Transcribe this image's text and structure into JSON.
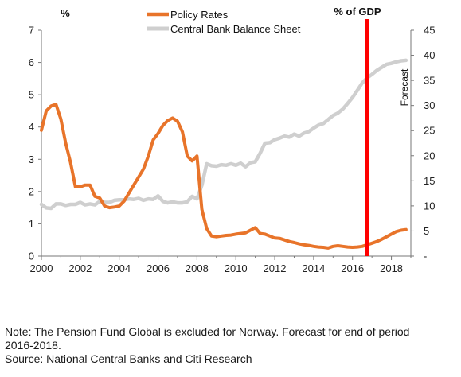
{
  "chart_data": {
    "type": "line",
    "left_unit": "%",
    "right_unit": "% of GDP",
    "forecast_label": "Forecast",
    "forecast_start_year": 2016.75,
    "x_ticks": [
      "2000",
      "2002",
      "2004",
      "2006",
      "2008",
      "2010",
      "2012",
      "2014",
      "2016",
      "2018"
    ],
    "y_left_ticks": [
      "0",
      "1",
      "2",
      "3",
      "4",
      "5",
      "6",
      "7"
    ],
    "y_right_ticks": [
      "-",
      "5",
      "10",
      "15",
      "20",
      "25",
      "30",
      "35",
      "40",
      "45"
    ],
    "xlim": [
      2000,
      2019
    ],
    "ylim_left": [
      0,
      7
    ],
    "ylim_right": [
      0,
      45
    ],
    "colors": {
      "policy": "#e8742a",
      "balance": "#cfcfcf",
      "forecast_line": "#ff0000"
    },
    "series": [
      {
        "name": "Policy Rates",
        "axis": "left",
        "x": [
          2000,
          2000.25,
          2000.5,
          2000.75,
          2001,
          2001.25,
          2001.5,
          2001.75,
          2002,
          2002.25,
          2002.5,
          2002.75,
          2003,
          2003.25,
          2003.5,
          2003.75,
          2004,
          2004.25,
          2004.5,
          2004.75,
          2005,
          2005.25,
          2005.5,
          2005.75,
          2006,
          2006.25,
          2006.5,
          2006.75,
          2007,
          2007.25,
          2007.5,
          2007.75,
          2008,
          2008.25,
          2008.5,
          2008.75,
          2009,
          2009.25,
          2009.5,
          2009.75,
          2010,
          2010.25,
          2010.5,
          2010.75,
          2011,
          2011.25,
          2011.5,
          2011.75,
          2012,
          2012.25,
          2012.5,
          2012.75,
          2013,
          2013.25,
          2013.5,
          2013.75,
          2014,
          2014.25,
          2014.5,
          2014.75,
          2015,
          2015.25,
          2015.5,
          2015.75,
          2016,
          2016.25,
          2016.5,
          2016.75,
          2017,
          2017.25,
          2017.5,
          2017.75,
          2018,
          2018.25,
          2018.5,
          2018.75
        ],
        "values": [
          3.9,
          4.5,
          4.65,
          4.7,
          4.25,
          3.5,
          2.9,
          2.15,
          2.15,
          2.2,
          2.2,
          1.85,
          1.8,
          1.55,
          1.5,
          1.52,
          1.55,
          1.7,
          1.95,
          2.2,
          2.45,
          2.7,
          3.1,
          3.6,
          3.8,
          4.05,
          4.2,
          4.28,
          4.18,
          3.85,
          3.1,
          2.95,
          3.1,
          1.45,
          0.85,
          0.62,
          0.6,
          0.62,
          0.64,
          0.65,
          0.68,
          0.7,
          0.72,
          0.8,
          0.88,
          0.7,
          0.68,
          0.62,
          0.56,
          0.55,
          0.5,
          0.45,
          0.42,
          0.38,
          0.35,
          0.33,
          0.3,
          0.28,
          0.27,
          0.25,
          0.3,
          0.32,
          0.3,
          0.28,
          0.27,
          0.28,
          0.3,
          0.35,
          0.4,
          0.45,
          0.52,
          0.6,
          0.68,
          0.76,
          0.8,
          0.82
        ]
      },
      {
        "name": "Central Bank Balance Sheet",
        "axis": "right",
        "x": [
          2000,
          2000.25,
          2000.5,
          2000.75,
          2001,
          2001.25,
          2001.5,
          2001.75,
          2002,
          2002.25,
          2002.5,
          2002.75,
          2003,
          2003.25,
          2003.5,
          2003.75,
          2004,
          2004.25,
          2004.5,
          2004.75,
          2005,
          2005.25,
          2005.5,
          2005.75,
          2006,
          2006.25,
          2006.5,
          2006.75,
          2007,
          2007.25,
          2007.5,
          2007.75,
          2008,
          2008.25,
          2008.5,
          2008.75,
          2009,
          2009.25,
          2009.5,
          2009.75,
          2010,
          2010.25,
          2010.5,
          2010.75,
          2011,
          2011.25,
          2011.5,
          2011.75,
          2012,
          2012.25,
          2012.5,
          2012.75,
          2013,
          2013.25,
          2013.5,
          2013.75,
          2014,
          2014.25,
          2014.5,
          2014.75,
          2015,
          2015.25,
          2015.5,
          2015.75,
          2016,
          2016.25,
          2016.5,
          2016.75,
          2017,
          2017.25,
          2017.5,
          2017.75,
          2018,
          2018.25,
          2018.5,
          2018.75
        ],
        "values": [
          10.3,
          9.6,
          9.5,
          10.4,
          10.4,
          10.1,
          10.3,
          10.3,
          10.7,
          10.2,
          10.4,
          10.2,
          10.9,
          10.7,
          10.7,
          11.1,
          11.2,
          11.2,
          11.4,
          11.3,
          11.5,
          11.1,
          11.4,
          11.3,
          12.0,
          10.9,
          10.6,
          10.8,
          10.6,
          10.6,
          10.8,
          11.9,
          11.4,
          14.1,
          18.4,
          18.0,
          17.9,
          18.2,
          18.1,
          18.4,
          18.1,
          18.5,
          17.8,
          18.6,
          18.8,
          20.5,
          22.5,
          22.6,
          23.2,
          23.5,
          23.9,
          23.7,
          24.3,
          23.9,
          24.5,
          24.8,
          25.5,
          26.1,
          26.4,
          27.2,
          28.0,
          28.5,
          29.3,
          30.4,
          31.6,
          33.0,
          34.5,
          35.5,
          36.2,
          37.0,
          37.6,
          38.2,
          38.4,
          38.7,
          38.9,
          39.0
        ]
      }
    ]
  },
  "notes": {
    "line1": "Note: The Pension Fund Global is excluded for Norway. Forecast for end of period",
    "line2": "2016-2018.",
    "line3": "Source: National Central Banks and Citi Research"
  }
}
